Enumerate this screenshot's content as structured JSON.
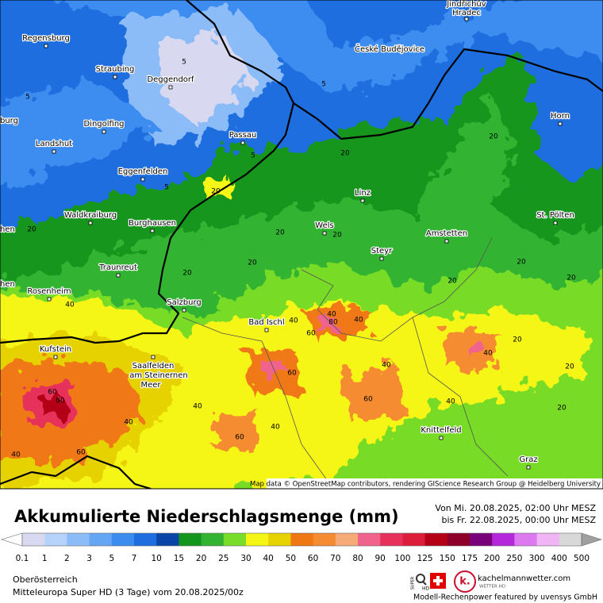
{
  "map": {
    "cities": [
      "Jindřichův",
      "Hradec",
      "Regensburg",
      "České Budějovice",
      "Straubing",
      "Deggendorf",
      "Dingolfing",
      "Horn",
      "Passau",
      "Landshut",
      "Eggenfelden",
      "Linz",
      "Waldkraiburg",
      "Burghausen",
      "Wels",
      "St. Pölten",
      "Amstetten",
      "Steyr",
      "Traunreut",
      "Rosenheim",
      "Salzburg",
      "Bad Ischl",
      "Kufstein",
      "Saalfelden",
      "am Steinernen",
      "Meer",
      "Knittelfeld",
      "Graz"
    ],
    "cut_labels": [
      "burg",
      "hen",
      "hen"
    ],
    "contour_labels": [
      5,
      5,
      5,
      5,
      5,
      20,
      20,
      20,
      20,
      20,
      20,
      20,
      20,
      20,
      20,
      20,
      20,
      20,
      20,
      40,
      40,
      40,
      40,
      40,
      40,
      40,
      40,
      40,
      40,
      40,
      60,
      60,
      60,
      60,
      60,
      60,
      80,
      80
    ],
    "attribution": "Map data © OpenStreetMap contributors, rendering GIScience Research Group @ Heidelberg University"
  },
  "legend": {
    "title": "Akkumulierte Niederschlagsmenge (mm)",
    "period_from": "Von Mi. 20.08.2025, 02:00 Uhr MESZ",
    "period_to": "bis Fr. 22.08.2025, 00:00 Uhr MESZ",
    "levels": [
      0.1,
      1,
      2,
      3,
      5,
      7,
      10,
      15,
      20,
      25,
      30,
      40,
      50,
      60,
      70,
      80,
      90,
      100,
      125,
      150,
      175,
      200,
      250,
      300,
      400,
      500
    ],
    "colors": [
      "#ffffff",
      "#d8d8f0",
      "#b4d2fa",
      "#8cbcf8",
      "#64a6f4",
      "#3c8cf0",
      "#1e6ee0",
      "#0a46a8",
      "#14961e",
      "#32b432",
      "#78dc28",
      "#f5f514",
      "#e6d200",
      "#f07814",
      "#f58c32",
      "#f5aa78",
      "#f0648c",
      "#e6325a",
      "#dc1e3c",
      "#b40014",
      "#8c0028",
      "#780078",
      "#b428dc",
      "#dc78f0",
      "#f0b4f5",
      "#d8d8d8",
      "#a0a0a0"
    ]
  },
  "footer": {
    "region": "Oberösterreich",
    "model": "Mitteleuropa Super HD (3 Tage) vom 20.08.2025/00z",
    "badge_top": "SUPER",
    "badge_bottom": "HD",
    "logo": "k.",
    "brand": "kachelmannwetter.com",
    "brand_sub": "WETTER HD",
    "sponsor": "Modell-Rechenpower featured by uvensys GmbH"
  }
}
